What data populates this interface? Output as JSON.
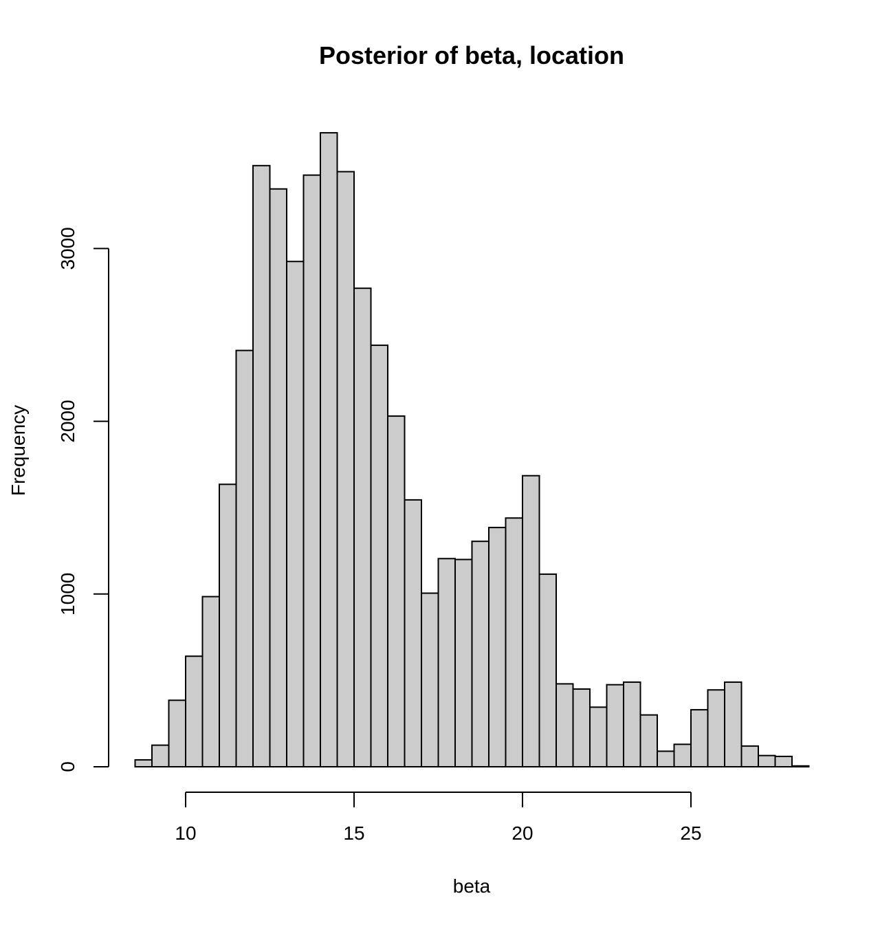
{
  "chart_data": {
    "type": "bar",
    "subtype": "histogram",
    "title": "Posterior of beta, location",
    "xlabel": "beta",
    "ylabel": "Frequency",
    "xlim": [
      8.5,
      28.5
    ],
    "ylim": [
      0,
      3700
    ],
    "bin_width": 0.5,
    "bin_start": 8.5,
    "x_ticks": [
      10,
      15,
      20,
      25
    ],
    "y_ticks": [
      0,
      1000,
      2000,
      3000
    ],
    "values": [
      40,
      125,
      385,
      640,
      985,
      1635,
      2410,
      3480,
      3345,
      2925,
      3425,
      3670,
      3445,
      2770,
      2440,
      2030,
      1545,
      1005,
      1205,
      1200,
      1305,
      1385,
      1440,
      1685,
      1115,
      480,
      450,
      345,
      475,
      490,
      300,
      90,
      130,
      330,
      445,
      490,
      120,
      65,
      60,
      5
    ],
    "bar_fill": "#cccccc",
    "bar_stroke": "#000000",
    "grid": false,
    "legend": "none"
  }
}
